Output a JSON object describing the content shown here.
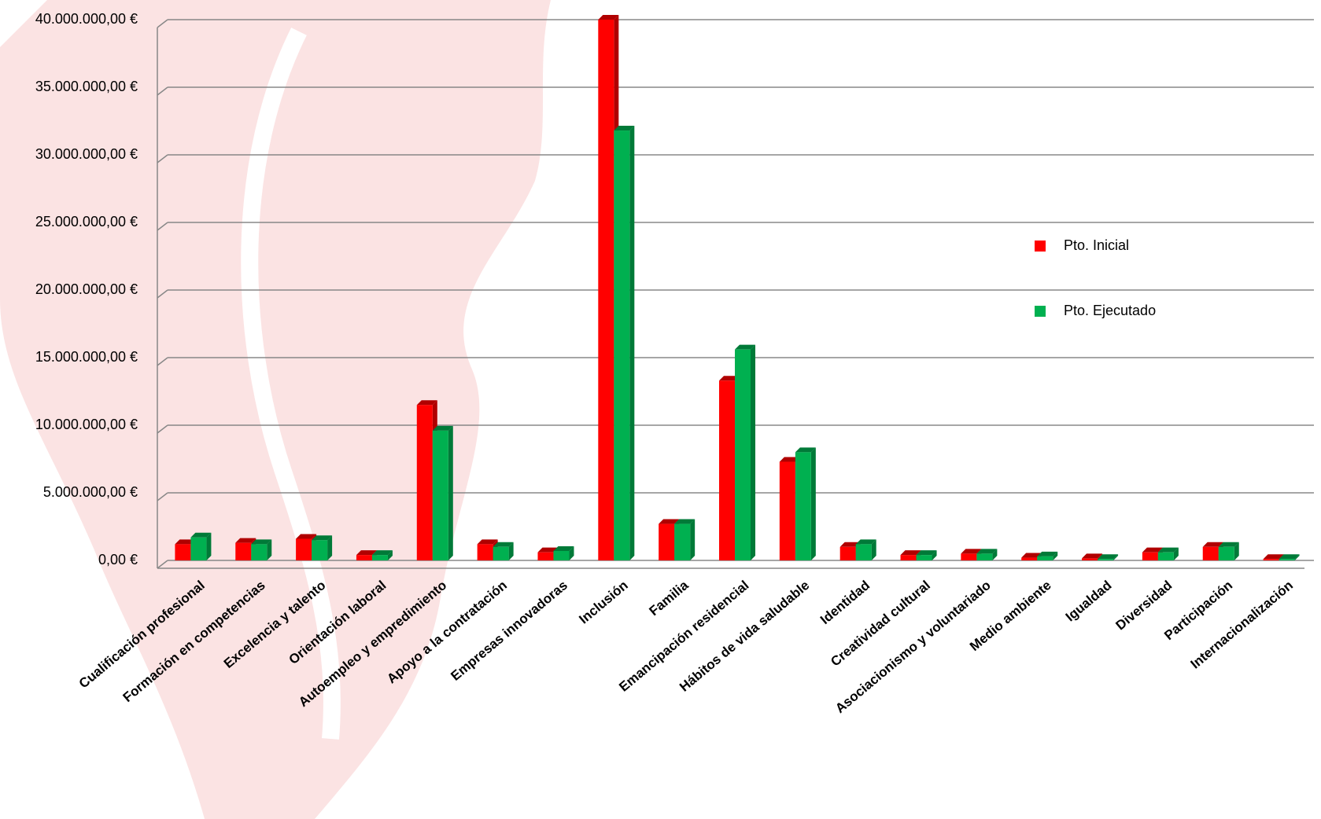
{
  "chart_data": {
    "type": "bar3d",
    "categories": [
      "Cualificación profesional",
      "Formación en competencias",
      "Excelencia y talento",
      "Orientación laboral",
      "Autoempleo y empredimiento",
      "Apoyo a la contratación",
      "Empresas innovadoras",
      "Inclusión",
      "Familia",
      "Emancipación residencial",
      "Hábitos de vida saludable",
      "Identidad",
      "Creatividad cultural",
      "Asociacionismo y voluntariado",
      "Medio ambiente",
      "Igualdad",
      "Diversidad",
      "Participación",
      "Internacionalización"
    ],
    "series": [
      {
        "name": "Pto. Inicial",
        "color": "#ff0000",
        "values": [
          1200000,
          1300000,
          1600000,
          400000,
          11500000,
          1200000,
          600000,
          40000000,
          2700000,
          13300000,
          7300000,
          1000000,
          400000,
          500000,
          200000,
          150000,
          600000,
          1000000,
          100000
        ]
      },
      {
        "name": "Pto. Ejecutado",
        "color": "#00b050",
        "values": [
          1700000,
          1200000,
          1500000,
          400000,
          9600000,
          1000000,
          700000,
          31800000,
          2700000,
          15600000,
          8000000,
          1200000,
          400000,
          500000,
          300000,
          100000,
          600000,
          1000000,
          100000
        ]
      }
    ],
    "ylim": [
      0,
      40000000
    ],
    "yticks": [
      {
        "value": 0,
        "label": "0,00 €"
      },
      {
        "value": 5000000,
        "label": "5.000.000,00 €"
      },
      {
        "value": 10000000,
        "label": "10.000.000,00 €"
      },
      {
        "value": 15000000,
        "label": "15.000.000,00 €"
      },
      {
        "value": 20000000,
        "label": "20.000.000,00 €"
      },
      {
        "value": 25000000,
        "label": "25.000.000,00 €"
      },
      {
        "value": 30000000,
        "label": "30.000.000,00 €"
      },
      {
        "value": 35000000,
        "label": "35.000.000,00 €"
      },
      {
        "value": 40000000,
        "label": "40.000.000,00 €"
      }
    ],
    "grid": true,
    "legend": "right"
  }
}
